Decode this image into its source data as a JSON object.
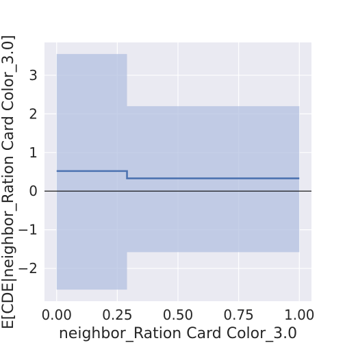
{
  "chart_data": {
    "type": "line",
    "title": "",
    "xlabel": "neighbor_Ration Card Color_3.0",
    "ylabel": "E[CDE|neighbor_Ration Card Color_3.0]",
    "xlim": [
      -0.05,
      1.05
    ],
    "ylim": [
      -2.85,
      3.85
    ],
    "xticks": [
      0.0,
      0.25,
      0.5,
      0.75,
      1.0
    ],
    "xtick_labels": [
      "0.00",
      "0.25",
      "0.50",
      "0.75",
      "1.00"
    ],
    "yticks": [
      -2,
      -1,
      0,
      1,
      2,
      3
    ],
    "ytick_labels": [
      "−2",
      "−1",
      "0",
      "1",
      "2",
      "3"
    ],
    "grid": true,
    "reference_line_y": 0,
    "series": [
      {
        "x": [
          0.0,
          0.29,
          0.29,
          1.0
        ],
        "y": [
          0.52,
          0.52,
          0.33,
          0.33
        ],
        "step": "post"
      }
    ],
    "confidence_band": {
      "x": [
        0.0,
        0.29,
        0.29,
        1.0
      ],
      "lower": [
        -2.55,
        -2.55,
        -1.58,
        -1.58
      ],
      "upper": [
        3.55,
        3.55,
        2.2,
        2.2
      ]
    },
    "colors": {
      "background": "#eaeaf2",
      "grid": "#ffffff",
      "line": "#4c72b0",
      "band": "#b3c0e0",
      "reference": "#000000"
    }
  }
}
